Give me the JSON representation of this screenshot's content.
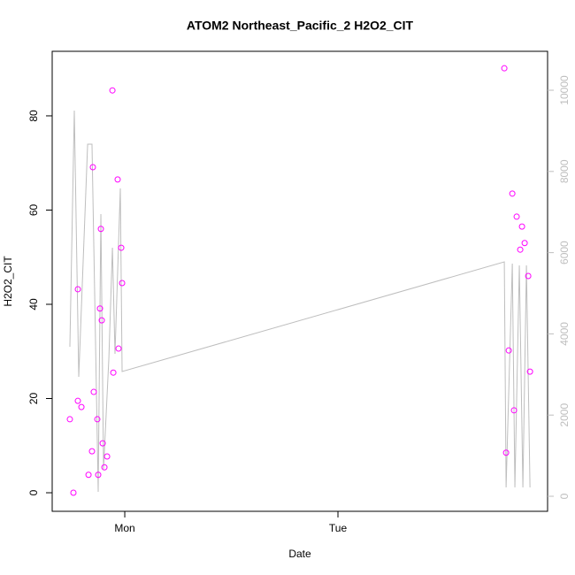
{
  "chart_data": {
    "type": "scatter",
    "title": "ATOM2 Northeast_Pacific_2 H2O2_CIT",
    "x_label": "Date",
    "y_label": "H2O2_CIT",
    "xlim": [
      -8.17,
      47.6
    ],
    "xticks": [
      {
        "value": 0,
        "label": "Mon"
      },
      {
        "value": 24,
        "label": "Tue"
      }
    ],
    "ylim": [
      -3.94,
      93.7
    ],
    "yticks": [
      0,
      20,
      40,
      60,
      80
    ],
    "y2lim": [
      -370,
      10959
    ],
    "y2ticks": [
      0,
      2000,
      4000,
      6000,
      8000,
      10000
    ],
    "y2_color": "#bebebe",
    "series": [
      {
        "type": "line",
        "axis": "y2",
        "color": "#bebebe",
        "x": [
          -6.18,
          -5.68,
          -5.18,
          -4.18,
          -3.69,
          -2.99,
          -2.69,
          -2.39,
          -1.79,
          -1.39,
          -1.1,
          -0.5,
          -0.3,
          42.73,
          42.93,
          43.63,
          43.92,
          44.42,
          44.82,
          45.22,
          45.62
        ],
        "values": [
          3682,
          9499,
          2941,
          8671,
          8671,
          109,
          6950,
          675,
          3399,
          6122,
          3508,
          7582,
          3072,
          5773,
          218,
          5730,
          218,
          5686,
          218,
          5686,
          218
        ]
      },
      {
        "type": "scatter",
        "color": "#ff00ff",
        "x": [
          -6.18,
          -5.78,
          -5.28,
          -5.28,
          -4.88,
          -4.08,
          -3.69,
          -3.59,
          -3.49,
          -3.09,
          -2.99,
          -2.79,
          -2.69,
          -2.59,
          -2.49,
          -2.29,
          -1.99,
          -1.39,
          -1.29,
          -0.8,
          -0.7,
          -0.4,
          -0.3,
          42.73,
          42.93,
          43.23,
          43.63,
          43.82,
          44.12,
          44.52,
          44.72,
          45.02,
          45.42,
          45.62
        ],
        "values": [
          15.6,
          0,
          43.2,
          19.5,
          18.2,
          3.8,
          8.8,
          69.1,
          21.4,
          15.6,
          3.8,
          39.1,
          56.0,
          36.6,
          10.5,
          5.4,
          7.7,
          85.4,
          25.5,
          66.5,
          30.6,
          52.0,
          44.5,
          90.1,
          8.5,
          30.2,
          63.5,
          17.5,
          58.6,
          51.6,
          56.5,
          53.0,
          46.0,
          25.7
        ]
      }
    ]
  }
}
